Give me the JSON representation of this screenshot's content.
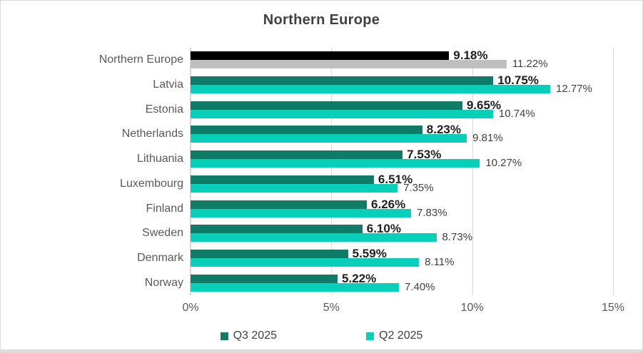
{
  "window": {
    "background": "#ffffff",
    "border_color": "#d9d9d9"
  },
  "styles": {
    "title_color": "#404040",
    "category_label_color": "#595959",
    "axis_label_color": "#595959",
    "series1_value_label_color": "#1f1f1f",
    "series2_value_label_color": "#404040",
    "gridline_color": "#d9d9d9",
    "axis_line_color": "#d6d6d6"
  },
  "chart_data": {
    "type": "bar",
    "orientation": "horizontal",
    "title": "Northern Europe",
    "grid": true,
    "legend_position": "bottom",
    "categories": [
      "Northern Europe",
      "Latvia",
      "Estonia",
      "Netherlands",
      "Lithuania",
      "Luxembourg",
      "Finland",
      "Sweden",
      "Denmark",
      "Norway"
    ],
    "series": [
      {
        "name": "Q3 2025",
        "color": "#0E7C66",
        "values": [
          9.18,
          10.75,
          9.65,
          8.23,
          7.53,
          6.51,
          6.26,
          6.1,
          5.59,
          5.22
        ],
        "labels": [
          "9.18%",
          "10.75%",
          "9.65%",
          "8.23%",
          "7.53%",
          "6.51%",
          "6.26%",
          "6.10%",
          "5.59%",
          "5.22%"
        ]
      },
      {
        "name": "Q2 2025",
        "color": "#06CFBA",
        "values": [
          11.22,
          12.77,
          10.74,
          9.81,
          10.27,
          7.35,
          7.83,
          8.73,
          8.11,
          7.4
        ],
        "labels": [
          "11.22%",
          "12.77%",
          "10.74%",
          "9.81%",
          "10.27%",
          "7.35%",
          "7.83%",
          "8.73%",
          "8.11%",
          "7.40%"
        ]
      }
    ],
    "highlight": {
      "category": "Northern Europe",
      "index": 0,
      "colors": [
        "#000000",
        "#BFBFBF"
      ]
    },
    "x_axis": {
      "min": 0,
      "max": 15,
      "ticks": [
        {
          "label": "0%",
          "value": 0
        },
        {
          "label": "5%",
          "value": 5
        },
        {
          "label": "10%",
          "value": 10
        },
        {
          "label": "15%",
          "value": 15
        }
      ]
    }
  }
}
